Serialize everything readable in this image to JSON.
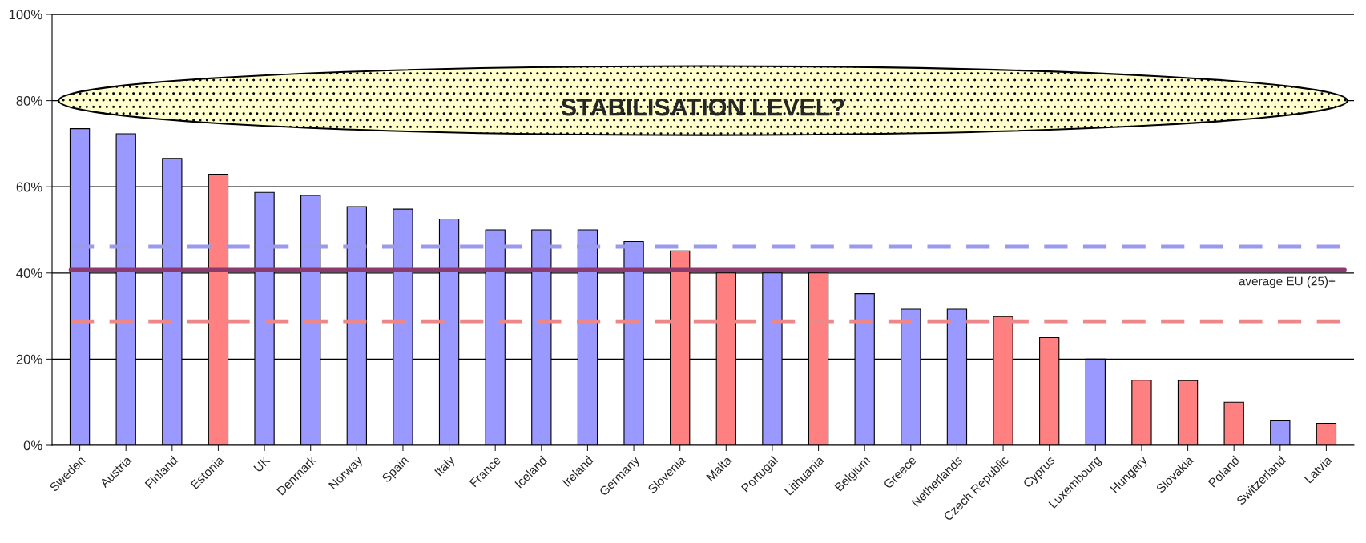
{
  "chart_data": {
    "type": "bar",
    "categories": [
      "Sweden",
      "Austria",
      "Finland",
      "Estonia",
      "UK",
      "Denmark",
      "Norway",
      "Spain",
      "Italy",
      "France",
      "Iceland",
      "Ireland",
      "Germany",
      "Slovenia",
      "Malta",
      "Portugal",
      "Lithuania",
      "Belgium",
      "Greece",
      "Netherlands",
      "Czech Republic",
      "Cyprus",
      "Luxembourg",
      "Hungary",
      "Slovakia",
      "Poland",
      "Switzerland",
      "Latvia"
    ],
    "values": [
      73.5,
      72.3,
      66.6,
      62.9,
      58.7,
      58,
      55.4,
      54.8,
      52.5,
      50,
      50,
      50,
      47.3,
      45.1,
      40,
      40,
      40,
      35.2,
      31.6,
      31.6,
      29.9,
      25,
      20,
      15.1,
      15,
      10,
      5.7,
      5.1
    ],
    "colors": [
      "#9999ff",
      "#9999ff",
      "#9999ff",
      "#ff8080",
      "#9999ff",
      "#9999ff",
      "#9999ff",
      "#9999ff",
      "#9999ff",
      "#9999ff",
      "#9999ff",
      "#9999ff",
      "#9999ff",
      "#ff8080",
      "#ff8080",
      "#9999ff",
      "#ff8080",
      "#9999ff",
      "#9999ff",
      "#9999ff",
      "#ff8080",
      "#ff8080",
      "#9999ff",
      "#ff8080",
      "#ff8080",
      "#ff8080",
      "#9999ff",
      "#ff8080"
    ],
    "ylim": [
      0,
      100
    ],
    "yticks": [
      {
        "value": 0,
        "label": "0%"
      },
      {
        "value": 20,
        "label": "20%"
      },
      {
        "value": 40,
        "label": "40%"
      },
      {
        "value": 60,
        "label": "60%"
      },
      {
        "value": 80,
        "label": "80%"
      },
      {
        "value": 100,
        "label": "100%"
      }
    ],
    "grid": "y",
    "legend": false,
    "ref_lines": [
      {
        "axis": "y",
        "value": 46.1,
        "label": null,
        "color": "#9999ee",
        "line_style": "dashed"
      },
      {
        "axis": "y",
        "value": 40.7,
        "label": "average EU (25)+",
        "color": "#8b3a6e",
        "line_style": "solid"
      },
      {
        "axis": "y",
        "value": 28.8,
        "label": null,
        "color": "#ee8888",
        "line_style": "dashed"
      }
    ],
    "annotations": [
      "STABILISATION LEVEL?"
    ]
  }
}
